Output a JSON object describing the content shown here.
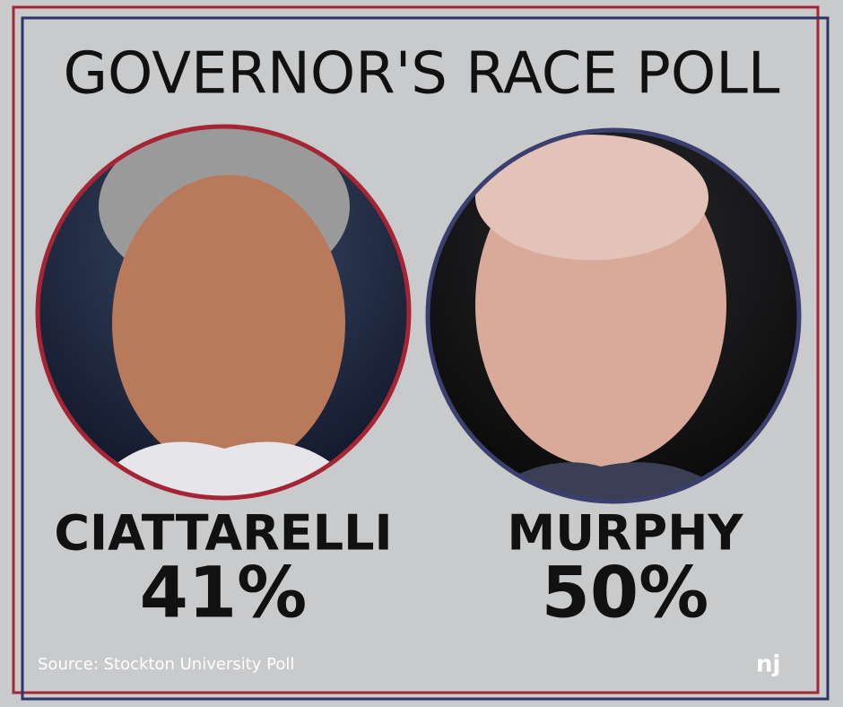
{
  "title": "GOVERNOR'S RACE POLL",
  "candidates": [
    {
      "name": "CIATTARELLI",
      "percent": "41%"
    },
    {
      "name": "MURPHY",
      "percent": "50%"
    }
  ],
  "source": "Source: Stockton University Poll",
  "logo": "nj"
}
